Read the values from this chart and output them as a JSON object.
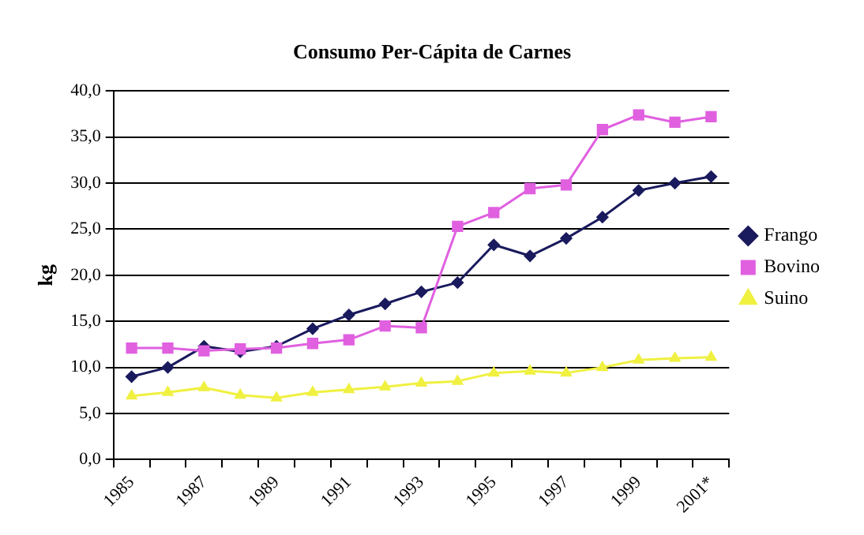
{
  "chart_data": {
    "type": "line",
    "title": "Consumo Per-Cápita de Carnes",
    "ylabel": "kg",
    "categories": [
      "1985",
      null,
      "1987",
      null,
      "1989",
      null,
      "1991",
      null,
      "1993",
      null,
      "1995",
      null,
      "1997",
      null,
      "1999",
      null,
      "2001*"
    ],
    "series": [
      {
        "name": "Frango",
        "color": "#1a1a5e",
        "marker": "diamond",
        "values": [
          9.0,
          10.0,
          12.3,
          11.7,
          12.3,
          14.2,
          15.7,
          16.9,
          18.2,
          19.2,
          23.3,
          22.1,
          24.0,
          26.3,
          29.2,
          30.0,
          30.7
        ]
      },
      {
        "name": "Bovino",
        "color": "#e060e0",
        "marker": "square",
        "values": [
          12.1,
          12.1,
          11.8,
          12.0,
          12.1,
          12.6,
          13.0,
          14.5,
          14.3,
          25.3,
          26.8,
          29.4,
          29.8,
          35.8,
          37.4,
          36.6,
          37.2
        ]
      },
      {
        "name": "Suino",
        "color": "#f0f040",
        "marker": "triangle",
        "values": [
          6.9,
          7.3,
          7.8,
          7.0,
          6.7,
          7.3,
          7.6,
          7.9,
          8.3,
          8.5,
          9.4,
          9.6,
          9.4,
          10.0,
          10.8,
          11.0,
          11.1
        ]
      }
    ],
    "ylim": [
      0,
      40
    ],
    "yticks": [
      {
        "value": 0,
        "label": "0,0"
      },
      {
        "value": 5,
        "label": "5,0"
      },
      {
        "value": 10,
        "label": "10,0"
      },
      {
        "value": 15,
        "label": "15,0"
      },
      {
        "value": 20,
        "label": "20,0"
      },
      {
        "value": 25,
        "label": "25,0"
      },
      {
        "value": 30,
        "label": "30,0"
      },
      {
        "value": 35,
        "label": "35,0"
      },
      {
        "value": 40,
        "label": "40,0"
      }
    ],
    "grid": "y",
    "legend": "right",
    "line_style": "solid"
  }
}
